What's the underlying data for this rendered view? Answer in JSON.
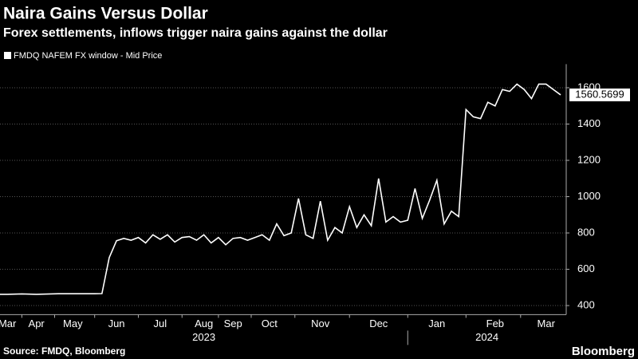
{
  "chart_data": {
    "type": "line",
    "title": "Naira Gains Versus Dollar",
    "subtitle": "Forex settlements, inflows trigger naira gains against the dollar",
    "source": "Source: FMDQ, Bloomberg",
    "brand": "Bloomberg",
    "categories": [
      null,
      "Mar",
      null,
      null,
      null,
      "Apr",
      null,
      null,
      null,
      null,
      "May",
      null,
      null,
      null,
      null,
      null,
      "Jun",
      null,
      null,
      null,
      null,
      null,
      "Jul",
      null,
      null,
      null,
      null,
      null,
      "Aug",
      null,
      null,
      null,
      "Sep",
      null,
      null,
      null,
      null,
      "Oct",
      null,
      null,
      null,
      null,
      null,
      null,
      "Nov",
      null,
      null,
      null,
      null,
      null,
      null,
      null,
      "Dec",
      null,
      null,
      null,
      null,
      null,
      null,
      null,
      "Jan",
      null,
      null,
      null,
      null,
      null,
      null,
      null,
      "Feb",
      null,
      null,
      null,
      null,
      null,
      null,
      "Mar",
      null,
      null
    ],
    "year_labels": [
      "2023",
      "2024"
    ],
    "series": [
      {
        "name": "FMDQ NAFEM FX window - Mid Price",
        "color": "#ffffff",
        "values": [
          462,
          462,
          463,
          464,
          463,
          462,
          463,
          464,
          465,
          465,
          465,
          465,
          465,
          465,
          466,
          664,
          757,
          770,
          760,
          775,
          745,
          790,
          765,
          790,
          750,
          775,
          780,
          760,
          790,
          745,
          775,
          735,
          770,
          775,
          760,
          775,
          790,
          760,
          850,
          785,
          800,
          990,
          790,
          770,
          975,
          760,
          830,
          800,
          945,
          830,
          900,
          840,
          1100,
          860,
          890,
          860,
          870,
          1045,
          880,
          980,
          1090,
          850,
          920,
          890,
          1480,
          1440,
          1430,
          1520,
          1500,
          1590,
          1580,
          1620,
          1590,
          1540,
          1620,
          1620,
          1590,
          1560.5699
        ]
      }
    ],
    "ylim": [
      350,
      1730
    ],
    "yticks": [
      400,
      600,
      800,
      1000,
      1200,
      1400,
      1600
    ],
    "grid": true
  }
}
